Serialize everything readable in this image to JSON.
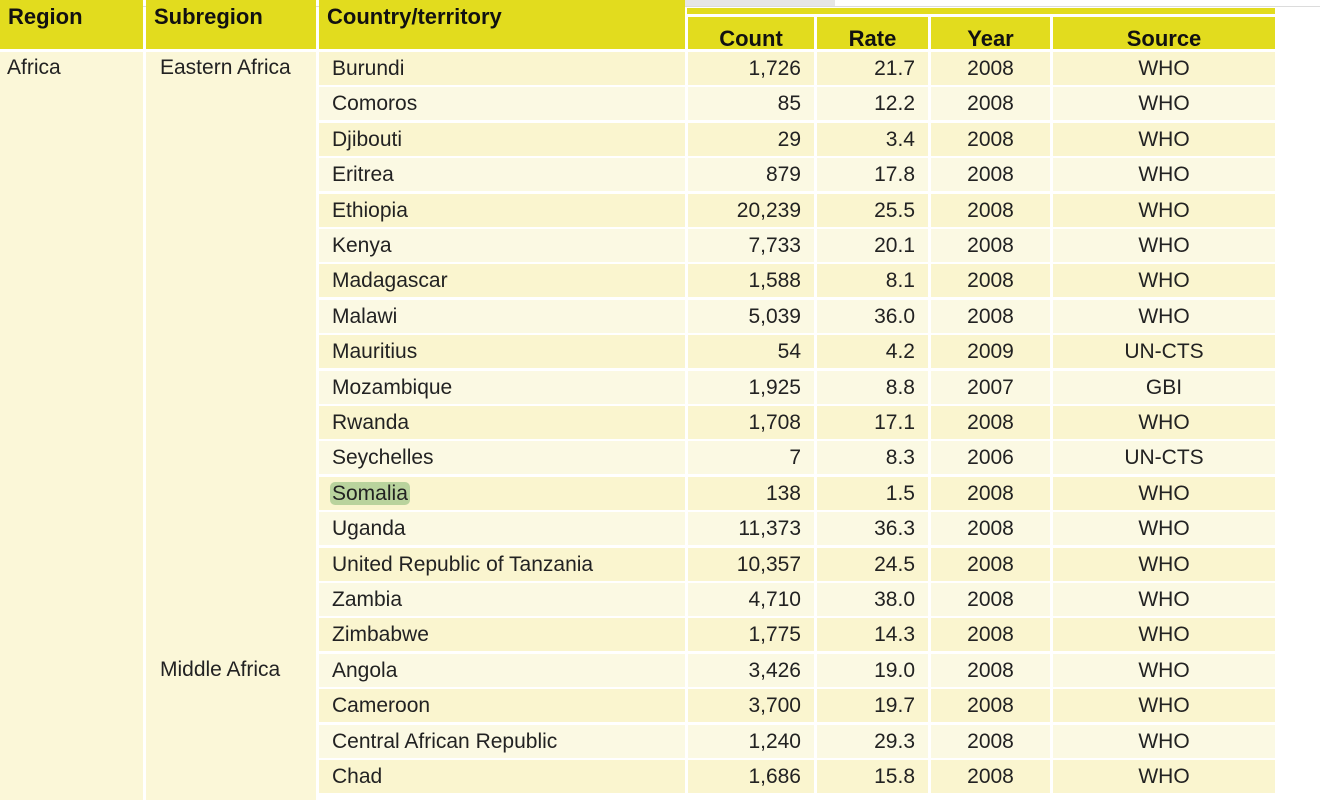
{
  "header": {
    "region": "Region",
    "subregion": "Subregion",
    "country": "Country/territory",
    "count": "Count",
    "rate": "Rate",
    "year": "Year",
    "source": "Source"
  },
  "region_label": "Africa",
  "subregions": [
    "Eastern Africa",
    "Middle Africa"
  ],
  "rows": [
    {
      "country": "Burundi",
      "count": "1,726",
      "rate": "21.7",
      "year": "2008",
      "source": "WHO"
    },
    {
      "country": "Comoros",
      "count": "85",
      "rate": "12.2",
      "year": "2008",
      "source": "WHO"
    },
    {
      "country": "Djibouti",
      "count": "29",
      "rate": "3.4",
      "year": "2008",
      "source": "WHO"
    },
    {
      "country": "Eritrea",
      "count": "879",
      "rate": "17.8",
      "year": "2008",
      "source": "WHO"
    },
    {
      "country": "Ethiopia",
      "count": "20,239",
      "rate": "25.5",
      "year": "2008",
      "source": "WHO"
    },
    {
      "country": "Kenya",
      "count": "7,733",
      "rate": "20.1",
      "year": "2008",
      "source": "WHO"
    },
    {
      "country": "Madagascar",
      "count": "1,588",
      "rate": "8.1",
      "year": "2008",
      "source": "WHO"
    },
    {
      "country": "Malawi",
      "count": "5,039",
      "rate": "36.0",
      "year": "2008",
      "source": "WHO"
    },
    {
      "country": "Mauritius",
      "count": "54",
      "rate": "4.2",
      "year": "2009",
      "source": "UN-CTS"
    },
    {
      "country": "Mozambique",
      "count": "1,925",
      "rate": "8.8",
      "year": "2007",
      "source": "GBI"
    },
    {
      "country": "Rwanda",
      "count": "1,708",
      "rate": "17.1",
      "year": "2008",
      "source": "WHO"
    },
    {
      "country": "Seychelles",
      "count": "7",
      "rate": "8.3",
      "year": "2006",
      "source": "UN-CTS"
    },
    {
      "country": "Somalia",
      "count": "138",
      "rate": "1.5",
      "year": "2008",
      "source": "WHO",
      "highlight": true
    },
    {
      "country": "Uganda",
      "count": "11,373",
      "rate": "36.3",
      "year": "2008",
      "source": "WHO"
    },
    {
      "country": "United Republic of Tanzania",
      "count": "10,357",
      "rate": "24.5",
      "year": "2008",
      "source": "WHO"
    },
    {
      "country": "Zambia",
      "count": "4,710",
      "rate": "38.0",
      "year": "2008",
      "source": "WHO"
    },
    {
      "country": "Zimbabwe",
      "count": "1,775",
      "rate": "14.3",
      "year": "2008",
      "source": "WHO"
    },
    {
      "country": "Angola",
      "count": "3,426",
      "rate": "19.0",
      "year": "2008",
      "source": "WHO"
    },
    {
      "country": "Cameroon",
      "count": "3,700",
      "rate": "19.7",
      "year": "2008",
      "source": "WHO"
    },
    {
      "country": "Central African Republic",
      "count": "1,240",
      "rate": "29.3",
      "year": "2008",
      "source": "WHO"
    },
    {
      "country": "Chad",
      "count": "1,686",
      "rate": "15.8",
      "year": "2008",
      "source": "WHO"
    }
  ],
  "colors": {
    "header": "#e2dc1e",
    "row_a": "#faf5cf",
    "row_b": "#fbf9e3",
    "highlight": "#b9d39d"
  }
}
